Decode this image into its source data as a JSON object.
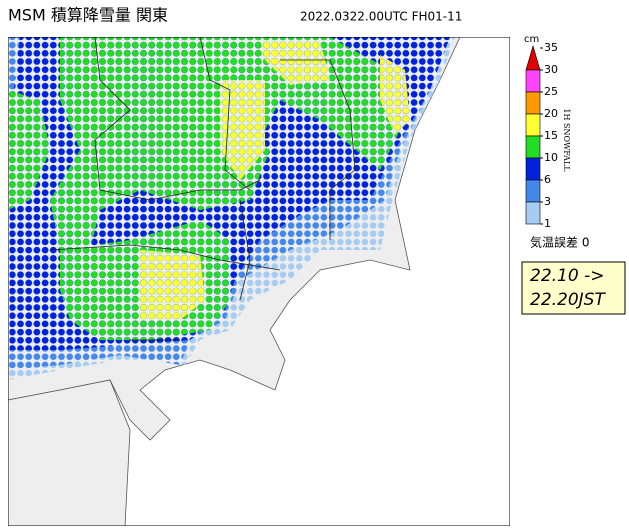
{
  "header": {
    "title": "MSM 積算降雪量 関東",
    "timestamp": "2022.0322.00UTC  FH01-11"
  },
  "legend": {
    "unit": "cm",
    "ticks": [
      35,
      30,
      25,
      20,
      15,
      10,
      6,
      3,
      1
    ],
    "colors": [
      "#e00000",
      "#ff44ff",
      "#ff9900",
      "#ffff33",
      "#22dd22",
      "#0022dd",
      "#4488ee",
      "#a6ccf4"
    ],
    "side_label": "1H SNOWFALL",
    "temp_error": "気温誤差 0"
  },
  "valid_time": {
    "from": "22.10 ->",
    "to": "22.20JST"
  }
}
